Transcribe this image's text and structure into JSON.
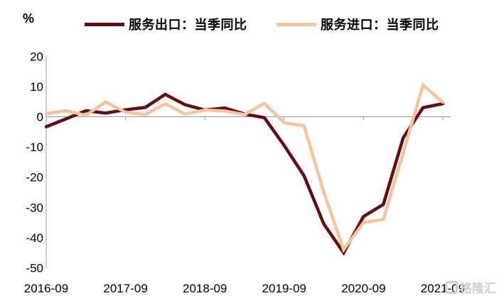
{
  "unit_label": "%",
  "watermark": {
    "text": "格隆汇"
  },
  "chart_data": {
    "type": "line",
    "title": "",
    "xlabel": "",
    "ylabel": "%",
    "x": [
      "2016-09",
      "2016-12",
      "2017-03",
      "2017-06",
      "2017-09",
      "2017-12",
      "2018-03",
      "2018-06",
      "2018-09",
      "2018-12",
      "2019-03",
      "2019-06",
      "2019-09",
      "2019-12",
      "2020-03",
      "2020-06",
      "2020-09",
      "2020-12",
      "2021-03",
      "2021-06",
      "2021-09"
    ],
    "series": [
      {
        "name": "服务出口：当季同比",
        "color": "#670c10",
        "values": [
          -3.3,
          -0.7,
          2.0,
          1.2,
          2.3,
          3.1,
          7.4,
          4.0,
          2.2,
          2.9,
          0.9,
          -0.3,
          -9.5,
          -19.5,
          -35.5,
          -45.0,
          -33.0,
          -29.0,
          -7.0,
          3.0,
          4.3
        ]
      },
      {
        "name": "服务进口：当季同比",
        "color": "#f6c39b",
        "values": [
          1.0,
          2.0,
          0.5,
          4.9,
          1.5,
          0.7,
          4.3,
          0.9,
          2.2,
          1.9,
          0.7,
          4.4,
          -2.0,
          -3.0,
          -25.0,
          -44.0,
          -35.0,
          -34.0,
          -12.0,
          10.5,
          4.8
        ]
      }
    ],
    "ylim": [
      -50,
      20
    ],
    "yticks": [
      20,
      10,
      0,
      -10,
      -20,
      -30,
      -40,
      -50
    ],
    "xtick_labels": [
      "2016-09",
      "2017-09",
      "2018-09",
      "2019-09",
      "2020-09",
      "2021-09"
    ],
    "grid": "zero-line-only",
    "legend_position": "top",
    "axis_color": "#9b9b9b",
    "text_color": "#000000"
  }
}
